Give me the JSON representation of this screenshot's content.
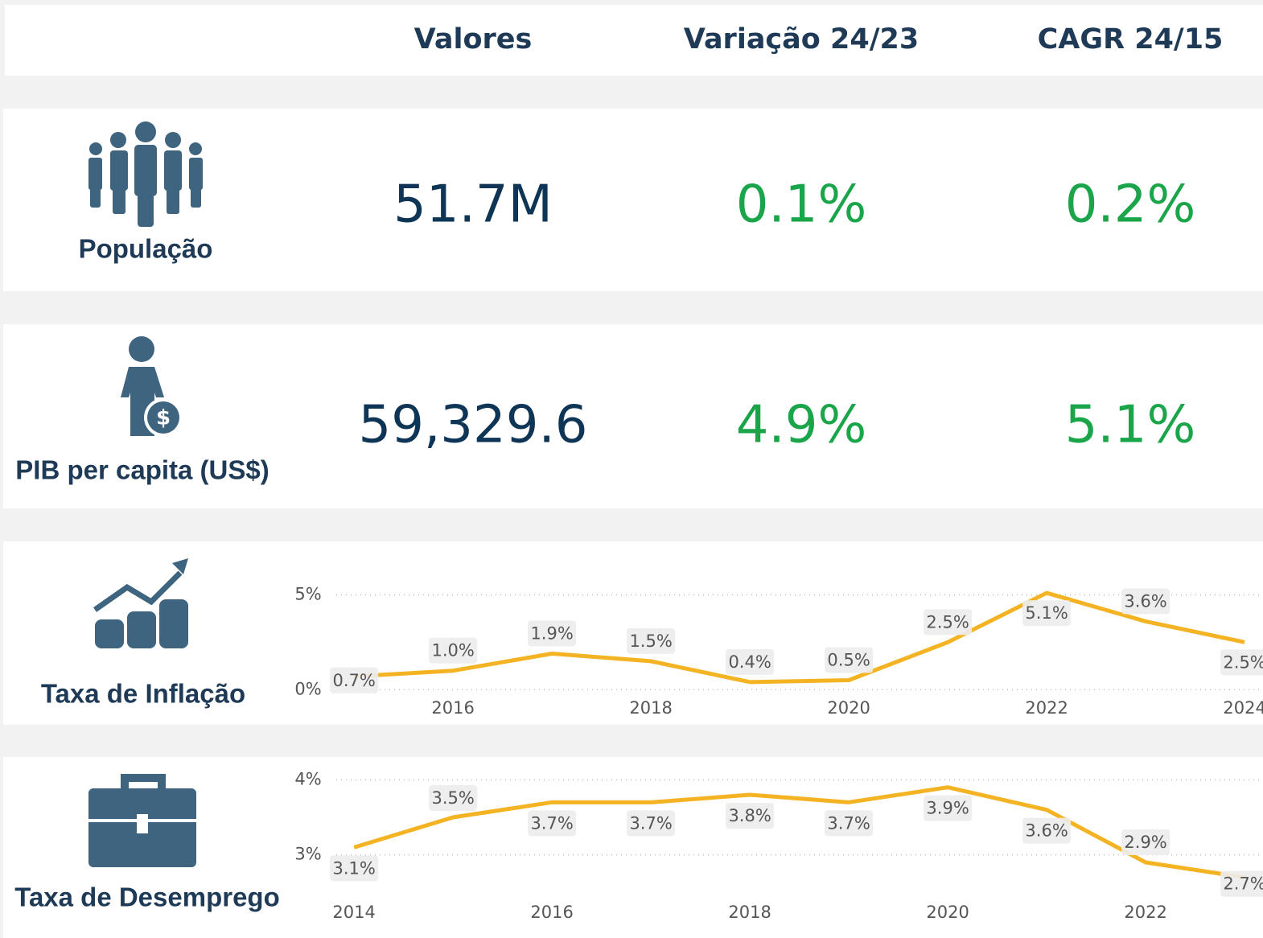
{
  "header": {
    "columns": [
      "Valores",
      "Variação 24/23",
      "CAGR 24/15"
    ]
  },
  "kpis": [
    {
      "label": "População",
      "values": [
        "51.7M",
        "0.1%",
        "0.2%"
      ]
    },
    {
      "label": "PIB per capita (US$)",
      "values": [
        "59,329.6",
        "4.9%",
        "5.1%"
      ]
    }
  ],
  "chart_data": [
    {
      "type": "line",
      "title": "Taxa de Inflação",
      "x": [
        2015,
        2016,
        2017,
        2018,
        2019,
        2020,
        2021,
        2022,
        2023,
        2024
      ],
      "values": [
        0.7,
        1.0,
        1.9,
        1.5,
        0.4,
        0.5,
        2.5,
        5.1,
        3.6,
        2.5
      ],
      "value_labels": [
        "0.7%",
        "1.0%",
        "1.9%",
        "1.5%",
        "0.4%",
        "0.5%",
        "2.5%",
        "5.1%",
        "3.6%",
        "2.5%"
      ],
      "color": "#f4b323",
      "xlim": [
        2014.82,
        2024.17
      ],
      "xticks": [
        2016,
        2018,
        2020,
        2022,
        2024
      ],
      "ylim": [
        -0.2,
        5.4
      ],
      "yticks": [
        {
          "value": 0,
          "label": "0%"
        },
        {
          "value": 5,
          "label": "5%"
        }
      ],
      "grid": true
    },
    {
      "type": "line",
      "title": "Taxa de Desemprego",
      "x": [
        2014,
        2015,
        2016,
        2017,
        2018,
        2019,
        2020,
        2021,
        2022,
        2023
      ],
      "values": [
        3.1,
        3.5,
        3.7,
        3.7,
        3.8,
        3.7,
        3.9,
        3.6,
        2.9,
        2.7
      ],
      "value_labels": [
        "3.1%",
        "3.5%",
        "3.7%",
        "3.7%",
        "3.8%",
        "3.7%",
        "3.9%",
        "3.6%",
        "2.9%",
        "2.7%"
      ],
      "color": "#f4b323",
      "xlim": [
        2013.82,
        2023.17
      ],
      "xticks": [
        2014,
        2016,
        2018,
        2020,
        2022
      ],
      "ylim": [
        2.6,
        4.1
      ],
      "yticks": [
        {
          "value": 3,
          "label": "3%"
        },
        {
          "value": 4,
          "label": "4%"
        }
      ],
      "grid": true
    }
  ]
}
